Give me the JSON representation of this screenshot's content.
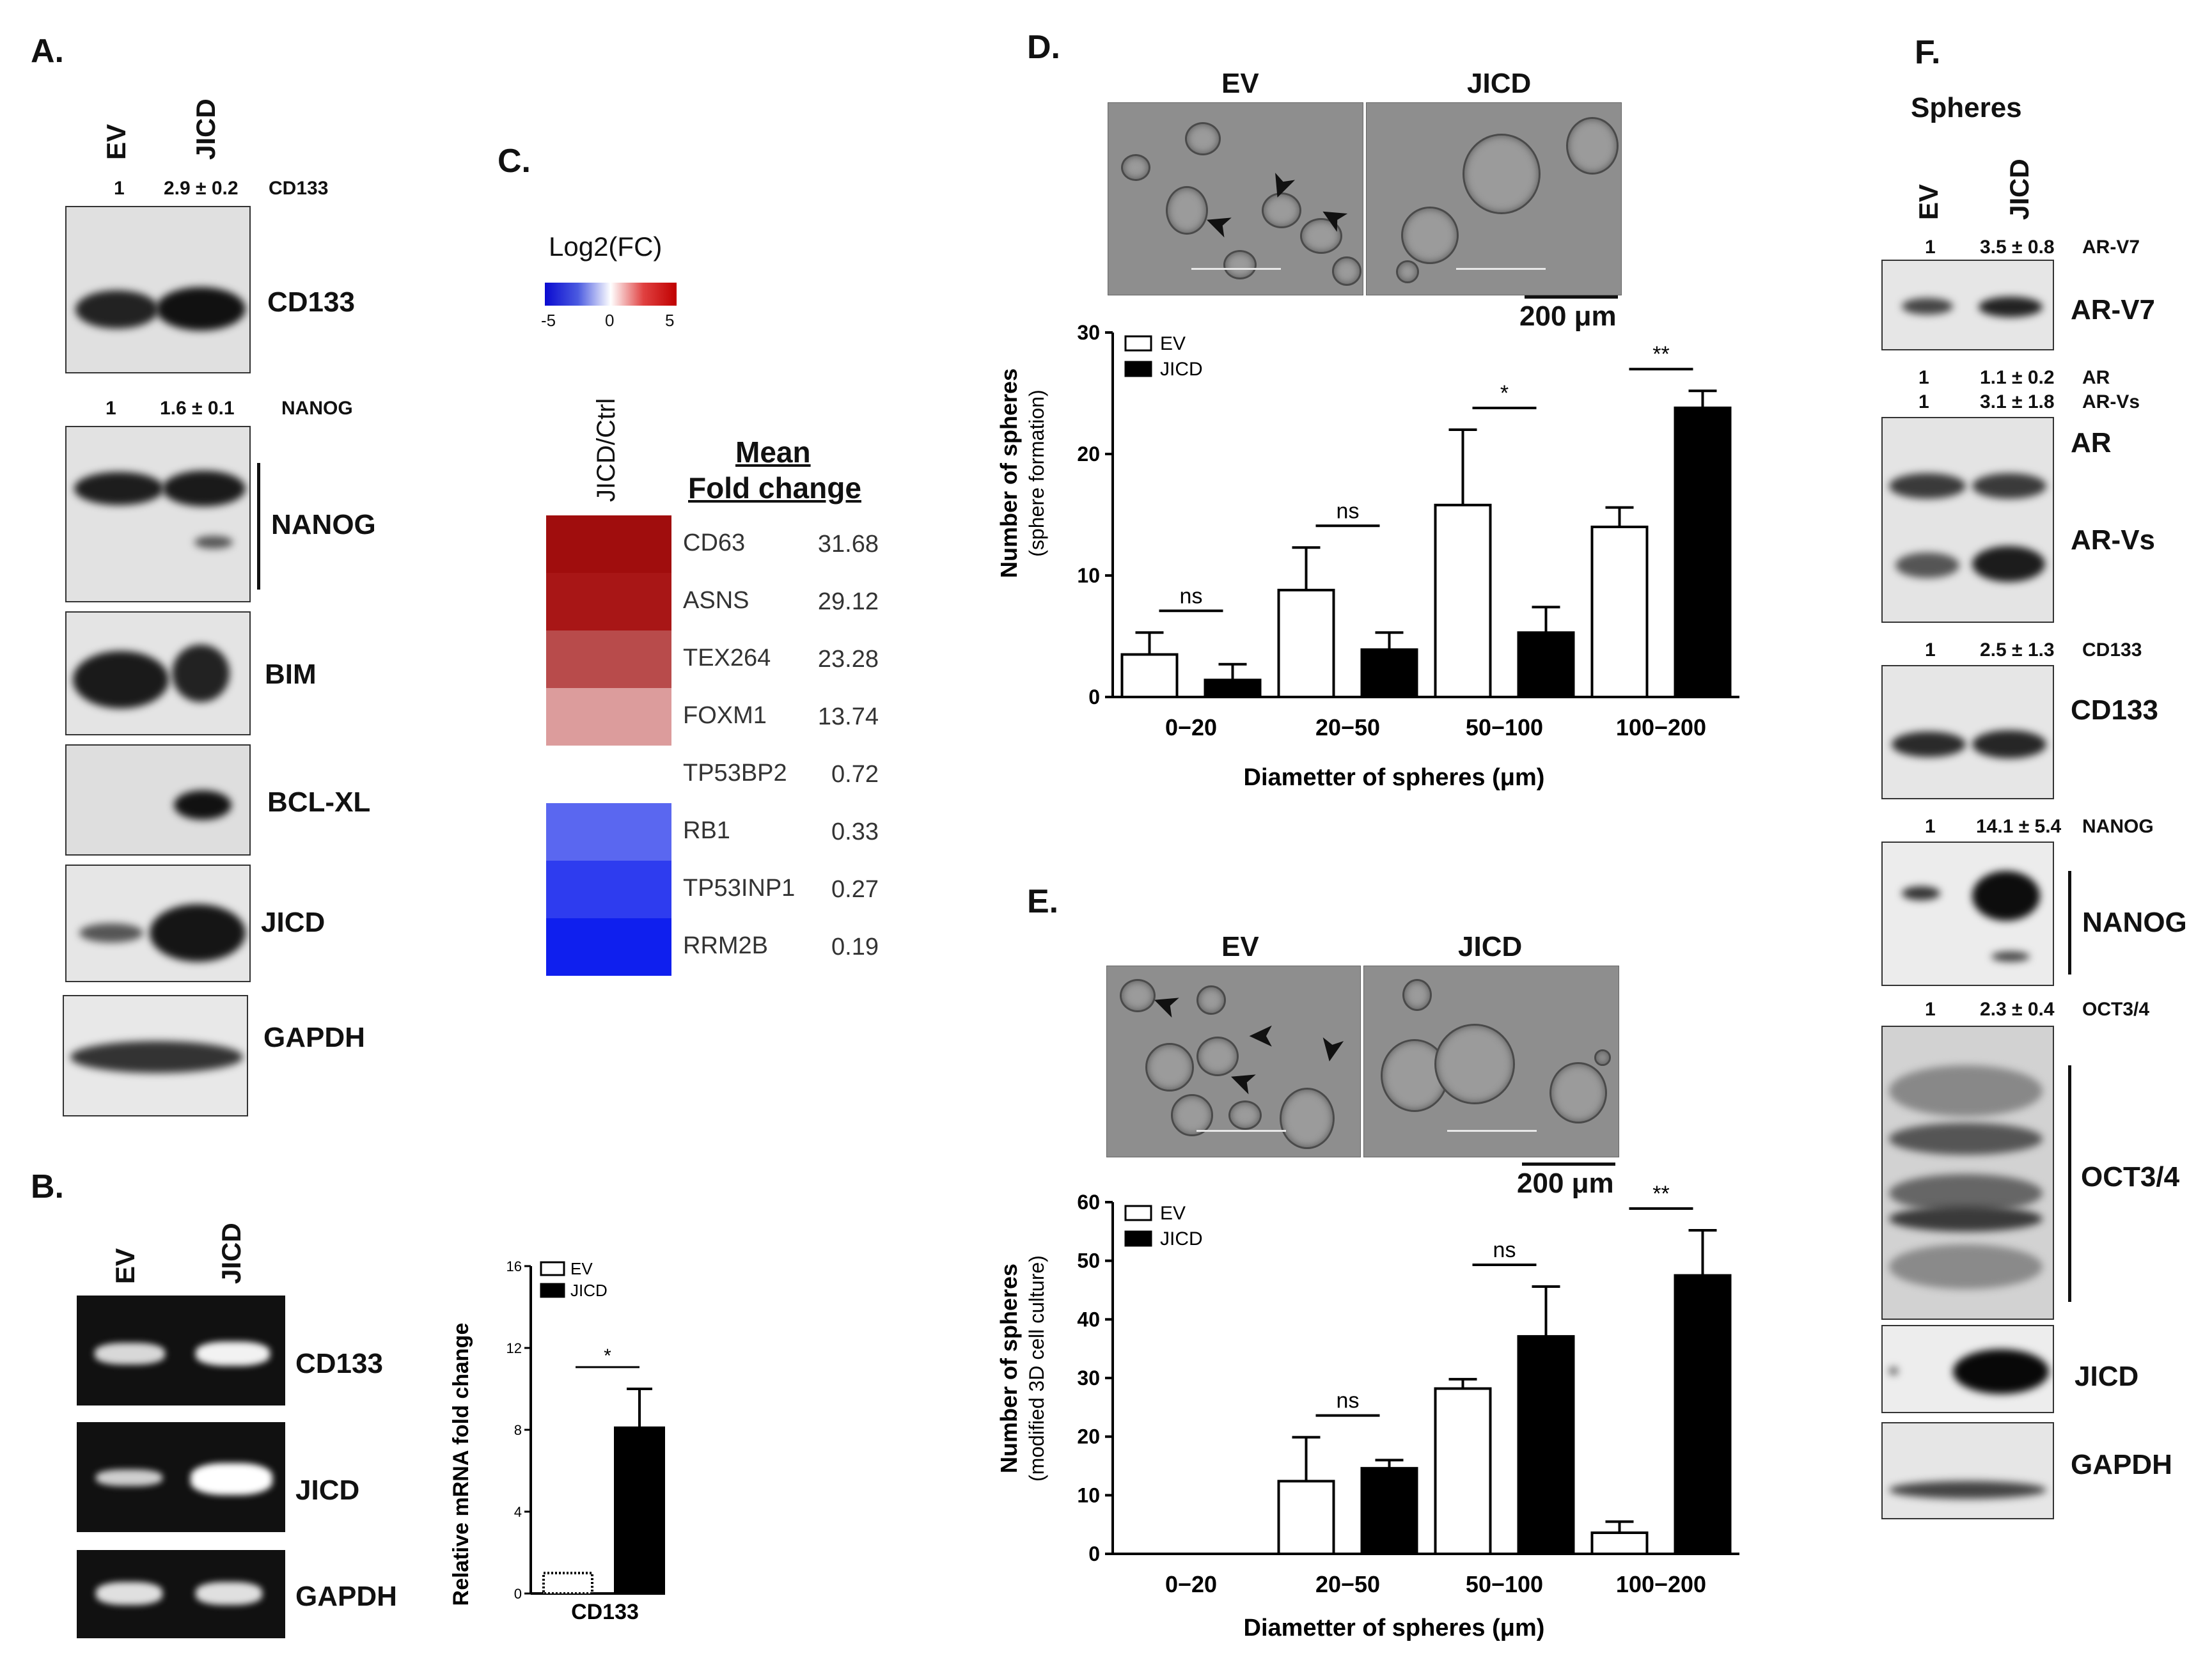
{
  "panels": {
    "A": "A.",
    "B": "B.",
    "C": "C.",
    "D": "D.",
    "E": "E.",
    "F": "F."
  },
  "panelA": {
    "lanes": [
      "EV",
      "JICD"
    ],
    "quant_cd133": {
      "ev": "1",
      "jicd": "2.9 ± 0.2",
      "name": "CD133"
    },
    "quant_nanog": {
      "ev": "1",
      "jicd": "1.6 ± 0.1",
      "name": "NANOG"
    },
    "blots": [
      "CD133",
      "NANOG",
      "BIM",
      "BCL-XL",
      "JICD",
      "GAPDH"
    ]
  },
  "panelB": {
    "lanes": [
      "EV",
      "JICD"
    ],
    "gels": [
      "CD133",
      "JICD",
      "GAPDH"
    ],
    "chart_data": {
      "type": "bar",
      "categories": [
        "CD133"
      ],
      "series": [
        {
          "name": "EV",
          "values": [
            1.0
          ],
          "err": [
            0.0
          ]
        },
        {
          "name": "JICD",
          "values": [
            8.1
          ],
          "err": [
            1.9
          ]
        }
      ],
      "ylabel": "Relative mRNA fold change",
      "xlabel": "CD133",
      "ylim": [
        0,
        16
      ],
      "yticks": [
        "0",
        "4",
        "8",
        "12",
        "16"
      ],
      "significance": "*",
      "colors": {
        "EV": "#ffffff",
        "JICD": "#000000"
      }
    }
  },
  "panelC": {
    "scale_title": "Log2(FC)",
    "scale_ticks": [
      "-5",
      "0",
      "5"
    ],
    "column_label": "JICD/Ctrl",
    "table_header_1": "Mean",
    "table_header_2": "Fold change",
    "genes": [
      {
        "name": "CD63",
        "value": "31.68",
        "color": "#a00d0d"
      },
      {
        "name": "ASNS",
        "value": "29.12",
        "color": "#a81616"
      },
      {
        "name": "TEX264",
        "value": "23.28",
        "color": "#b84b4b"
      },
      {
        "name": "FOXM1",
        "value": "13.74",
        "color": "#dc9c9c"
      },
      {
        "name": "TP53BP2",
        "value": "0.72",
        "color": "#ffffff"
      },
      {
        "name": "RB1",
        "value": "0.33",
        "color": "#5a67f0"
      },
      {
        "name": "TP53INP1",
        "value": "0.27",
        "color": "#2e3cef"
      },
      {
        "name": "RRM2B",
        "value": "0.19",
        "color": "#0f1fee"
      }
    ]
  },
  "panelD": {
    "image_labels": [
      "EV",
      "JICD"
    ],
    "scale_bar": "200 μm",
    "chart_data": {
      "type": "bar",
      "categories": [
        "0−20",
        "20−50",
        "50−100",
        "100−200"
      ],
      "series": [
        {
          "name": "EV",
          "values": [
            3.5,
            8.8,
            15.8,
            14.0
          ],
          "err": [
            1.8,
            3.5,
            6.2,
            1.6
          ]
        },
        {
          "name": "JICD",
          "values": [
            1.4,
            3.9,
            5.3,
            23.8
          ],
          "err": [
            1.3,
            1.4,
            2.1,
            1.4
          ]
        }
      ],
      "ylabel": "Number of spheres",
      "ylabel2": "(sphere formation)",
      "xlabel": "Diametter of spheres (μm)",
      "ylim": [
        0,
        30
      ],
      "yticks": [
        "0",
        "10",
        "20",
        "30"
      ],
      "significance": [
        "ns",
        "ns",
        "*",
        "**"
      ],
      "legend": "top-left",
      "colors": {
        "EV": "#ffffff",
        "JICD": "#000000"
      }
    }
  },
  "panelE": {
    "image_labels": [
      "EV",
      "JICD"
    ],
    "scale_bar": "200 μm",
    "chart_data": {
      "type": "bar",
      "categories": [
        "0−20",
        "20−50",
        "50−100",
        "100−200"
      ],
      "series": [
        {
          "name": "EV",
          "values": [
            0,
            12.4,
            28.2,
            3.6
          ],
          "err": [
            0,
            7.5,
            1.6,
            1.9
          ]
        },
        {
          "name": "JICD",
          "values": [
            0,
            14.6,
            37.1,
            47.5
          ],
          "err": [
            0,
            1.4,
            8.5,
            7.7
          ]
        }
      ],
      "ylabel": "Number of spheres",
      "ylabel2": "(modified 3D cell culture)",
      "xlabel": "Diametter of spheres (μm)",
      "ylim": [
        0,
        60
      ],
      "yticks": [
        "0",
        "10",
        "20",
        "30",
        "40",
        "50",
        "60"
      ],
      "significance": [
        "",
        "ns",
        "ns",
        "**"
      ],
      "legend": "top-left",
      "colors": {
        "EV": "#ffffff",
        "JICD": "#000000"
      }
    }
  },
  "panelF": {
    "title": "Spheres",
    "lanes": [
      "EV",
      "JICD"
    ],
    "q_arv7": {
      "ev": "1",
      "jicd": "3.5 ± 0.8",
      "name": "AR-V7"
    },
    "q_ar": {
      "ev": "1",
      "jicd": "1.1 ± 0.2",
      "name": "AR"
    },
    "q_arvs": {
      "ev": "1",
      "jicd": "3.1 ± 1.8",
      "name": "AR-Vs"
    },
    "q_cd133": {
      "ev": "1",
      "jicd": "2.5 ± 1.3",
      "name": "CD133"
    },
    "q_nanog": {
      "ev": "1",
      "jicd": "14.1 ± 5.4",
      "name": "NANOG"
    },
    "q_oct": {
      "ev": "1",
      "jicd": "2.3 ± 0.4",
      "name": "OCT3/4"
    },
    "blots": [
      "AR-V7",
      "AR",
      "AR-Vs",
      "CD133",
      "NANOG",
      "OCT3/4",
      "JICD",
      "GAPDH"
    ]
  }
}
